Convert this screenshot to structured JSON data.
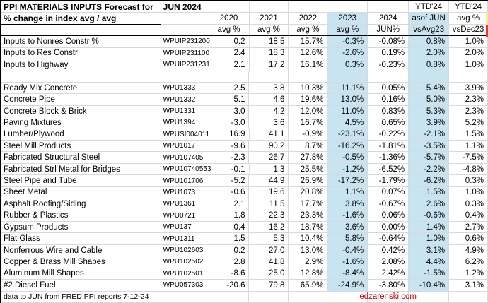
{
  "title": {
    "main": "PPI MATERIALS INPUTS Forecast for",
    "month": "JUN 2024"
  },
  "subtitle": "% change in index avg / avg",
  "header": {
    "ytd_left": "YTD'24",
    "ytd_right": "YTD'24",
    "cols": [
      "2020",
      "2021",
      "2022",
      "2023",
      "2024",
      "asof JUN",
      "avg %"
    ],
    "subcols": [
      "avg %",
      "avg %",
      "avg %",
      "avg %",
      "JUN%",
      "vsAvg23",
      "vsDec23"
    ]
  },
  "table": {
    "rows": [
      {
        "name": "Inputs to Nonres Constr %",
        "code": "WPUIP231200",
        "values": [
          "0.2",
          "18.5",
          "15.7%",
          "-0.3%",
          "-0.08%",
          "0.8%",
          "1.0%"
        ]
      },
      {
        "name": "Inputs to Res Constr",
        "code": "WPUIP231100",
        "values": [
          "2.4",
          "18.3",
          "12.6%",
          "-2.6%",
          "0.19%",
          "2.0%",
          "2.0%"
        ]
      },
      {
        "name": "Inputs to Highway",
        "code": "WPUIP231231",
        "values": [
          "2.1",
          "17.2",
          "16.1%",
          "0.3%",
          "-0.23%",
          "0.8%",
          "1.0%"
        ]
      },
      {
        "name": "",
        "code": "",
        "values": [
          "",
          "",
          "",
          "",
          "",
          "",
          ""
        ]
      },
      {
        "name": "Ready Mix Concrete",
        "code": "WPU1333",
        "values": [
          "2.5",
          "3.8",
          "10.3%",
          "11.1%",
          "0.05%",
          "5.4%",
          "3.9%"
        ]
      },
      {
        "name": "Concrete Pipe",
        "code": "WPU1332",
        "values": [
          "5.1",
          "4.6",
          "19.6%",
          "13.0%",
          "0.16%",
          "5.0%",
          "2.3%"
        ]
      },
      {
        "name": "Concrete Block & Brick",
        "code": "WPU1331",
        "values": [
          "3.0",
          "4.2",
          "12.0%",
          "11.0%",
          "0.83%",
          "5.3%",
          "2.3%"
        ]
      },
      {
        "name": "Paving Mixtures",
        "code": "WPU1394",
        "values": [
          "-3.0",
          "3.6",
          "16.7%",
          "4.5%",
          "0.65%",
          "3.9%",
          "5.2%"
        ]
      },
      {
        "name": "Lumber/Plywood",
        "code": "WPUSI004011",
        "values": [
          "16.9",
          "41.1",
          "-0.9%",
          "-23.1%",
          "-0.22%",
          "-2.1%",
          "1.5%"
        ]
      },
      {
        "name": "Steel Mill Products",
        "code": "WPU1017",
        "values": [
          "-9.6",
          "90.2",
          "8.7%",
          "-16.2%",
          "-1.81%",
          "-3.5%",
          "1.1%"
        ]
      },
      {
        "name": "Fabricated Structural Steel",
        "code": "WPU107405",
        "values": [
          "-2.3",
          "26.7",
          "27.8%",
          "-0.5%",
          "-1.36%",
          "-5.7%",
          "-7.5%"
        ]
      },
      {
        "name": "Fabricated Strl Metal for Bridges",
        "code": "WPU10740553",
        "values": [
          "-0.1",
          "1.3",
          "25.5%",
          "-1.2%",
          "-6.52%",
          "-2.2%",
          "-4.8%"
        ]
      },
      {
        "name": "Steel Pipe and Tube",
        "code": "WPU101706",
        "values": [
          "-5.2",
          "44.9",
          "26.9%",
          "-17.2%",
          "-1.79%",
          "-6.2%",
          "0.3%"
        ]
      },
      {
        "name": "Sheet Metal",
        "code": "WPU1073",
        "values": [
          "-0.6",
          "19.6",
          "20.8%",
          "1.1%",
          "0.07%",
          "1.5%",
          "1.0%"
        ]
      },
      {
        "name": "Asphalt Roofing/Siding",
        "code": "WPU1361",
        "values": [
          "2.1",
          "11.5",
          "17.7%",
          "3.8%",
          "-0.67%",
          "2.6%",
          "0.3%"
        ]
      },
      {
        "name": "Rubber & Plastics",
        "code": "WPU0721",
        "values": [
          "1.8",
          "22.3",
          "23.3%",
          "-1.6%",
          "0.06%",
          "-0.6%",
          "0.4%"
        ]
      },
      {
        "name": "Gypsum Products",
        "code": "WPU137",
        "values": [
          "0.4",
          "16.2",
          "18.7%",
          "3.6%",
          "0.00%",
          "1.4%",
          "2.7%"
        ]
      },
      {
        "name": "Flat Glass",
        "code": "WPU1311",
        "values": [
          "1.5",
          "5.3",
          "10.4%",
          "5.8%",
          "-0.64%",
          "1.0%",
          "0.6%"
        ]
      },
      {
        "name": "Nonferrous Wire and Cable",
        "code": "WPU102603",
        "values": [
          "0.2",
          "27.0",
          "13.0%",
          "-0.4%",
          "0.42%",
          "3.1%",
          "4.9%"
        ]
      },
      {
        "name": "Copper & Brass Mill Shapes",
        "code": "WPU102502",
        "values": [
          "2.8",
          "41.8",
          "2.9%",
          "-1.6%",
          "2.08%",
          "4.4%",
          "6.2%"
        ]
      },
      {
        "name": "Aluminum Mill Shapes",
        "code": "WPU102501",
        "values": [
          "-8.6",
          "25.0",
          "12.8%",
          "-8.4%",
          "2.42%",
          "-1.5%",
          "1.2%"
        ]
      },
      {
        "name": "#2 Diesel Fuel",
        "code": "WPU057303",
        "values": [
          "-20.6",
          "79.8",
          "65.9%",
          "-24.9%",
          "-3.80%",
          "-10.4%",
          "3.1%"
        ]
      }
    ]
  },
  "footer": {
    "note": "data to JUN from FRED PPI reports 7-12-24",
    "site": "edzarenski.com"
  },
  "colors": {
    "highlight": "#c9e4f1",
    "site_red": "#c00000",
    "flag_red": "#e53935",
    "flag_yellow": "#ffe98a"
  }
}
